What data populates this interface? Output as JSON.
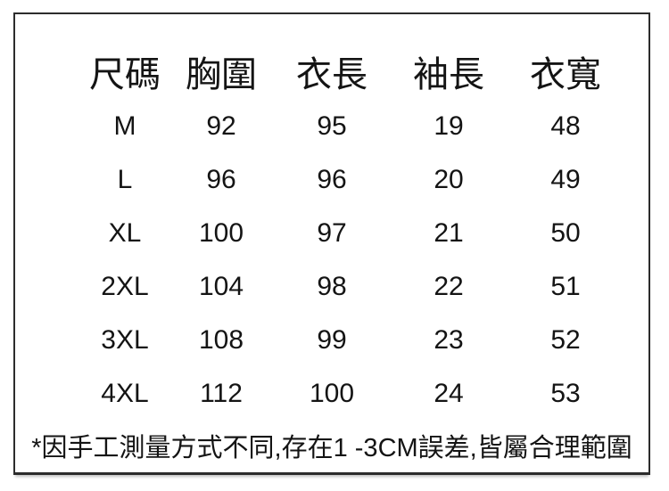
{
  "chart_data": {
    "type": "table",
    "columns": [
      "尺碼",
      "胸圍",
      "衣長",
      "袖長",
      "衣寬"
    ],
    "rows": [
      [
        "M",
        "92",
        "95",
        "19",
        "48"
      ],
      [
        "L",
        "96",
        "96",
        "20",
        "49"
      ],
      [
        "XL",
        "100",
        "97",
        "21",
        "50"
      ],
      [
        "2XL",
        "104",
        "98",
        "22",
        "51"
      ],
      [
        "3XL",
        "108",
        "99",
        "23",
        "52"
      ],
      [
        "4XL",
        "112",
        "100",
        "24",
        "53"
      ]
    ],
    "footnote": "*因手工測量方式不同,存在1 -3CM誤差,皆屬合理範圍",
    "layout": {
      "grid": "off",
      "header_position": "top"
    }
  },
  "colors": {
    "background": "#ffffff",
    "border": "#2c2c2c",
    "text": "#141414"
  }
}
